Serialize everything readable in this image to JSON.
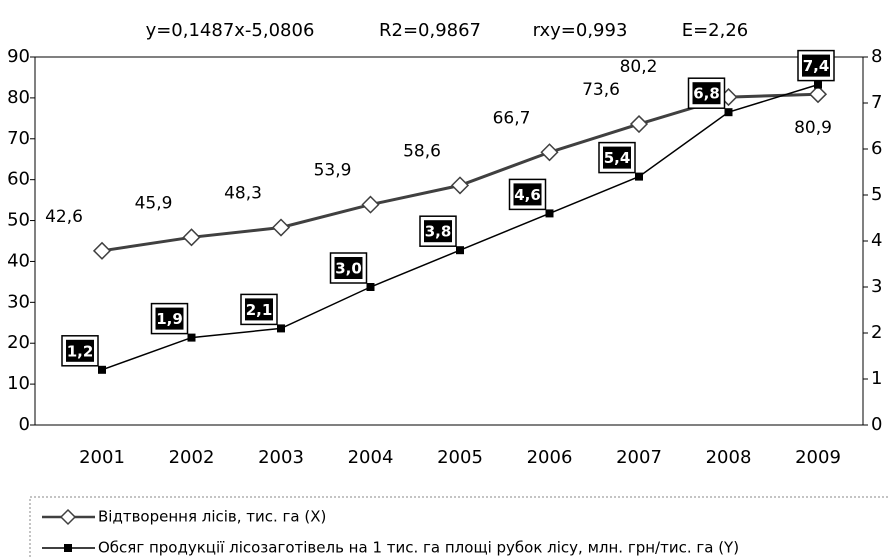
{
  "chart_data": {
    "type": "line",
    "annotations": [
      "y=0,1487x-5,0806",
      "R2=0,9867",
      "rxy=0,993",
      "E=2,26"
    ],
    "categories": [
      "2001",
      "2002",
      "2003",
      "2004",
      "2005",
      "2006",
      "2007",
      "2008",
      "2009"
    ],
    "series": [
      {
        "name": "Відтворення лісів, тис. га (X)",
        "color": "#404040",
        "values": [
          42.6,
          45.9,
          48.3,
          53.9,
          58.6,
          66.7,
          73.6,
          80.2,
          80.9
        ],
        "value_labels": [
          "42,6",
          "45,9",
          "48,3",
          "53,9",
          "58,6",
          "66,7",
          "73,6",
          "80,2",
          "80,9"
        ]
      },
      {
        "name": "Обсяг продукції лісозаготівель на 1 тис. га площі рубок лісу, млн. грн/тис. га (Y)",
        "color": "#000000",
        "axis": "y2",
        "values": [
          1.2,
          1.9,
          2.1,
          3.0,
          3.8,
          4.6,
          5.4,
          6.8,
          7.4
        ],
        "value_labels": [
          "1,2",
          "1,9",
          "2,1",
          "3,0",
          "3,8",
          "4,6",
          "5,4",
          "6,8",
          "7,4"
        ]
      }
    ],
    "ylim": [
      0,
      90
    ],
    "yticks": [
      0,
      10,
      20,
      30,
      40,
      50,
      60,
      70,
      80,
      90
    ],
    "y2lim": [
      0,
      8
    ],
    "y2ticks": [
      0,
      1,
      2,
      3,
      4,
      5,
      6,
      7,
      8
    ],
    "grid": false
  }
}
